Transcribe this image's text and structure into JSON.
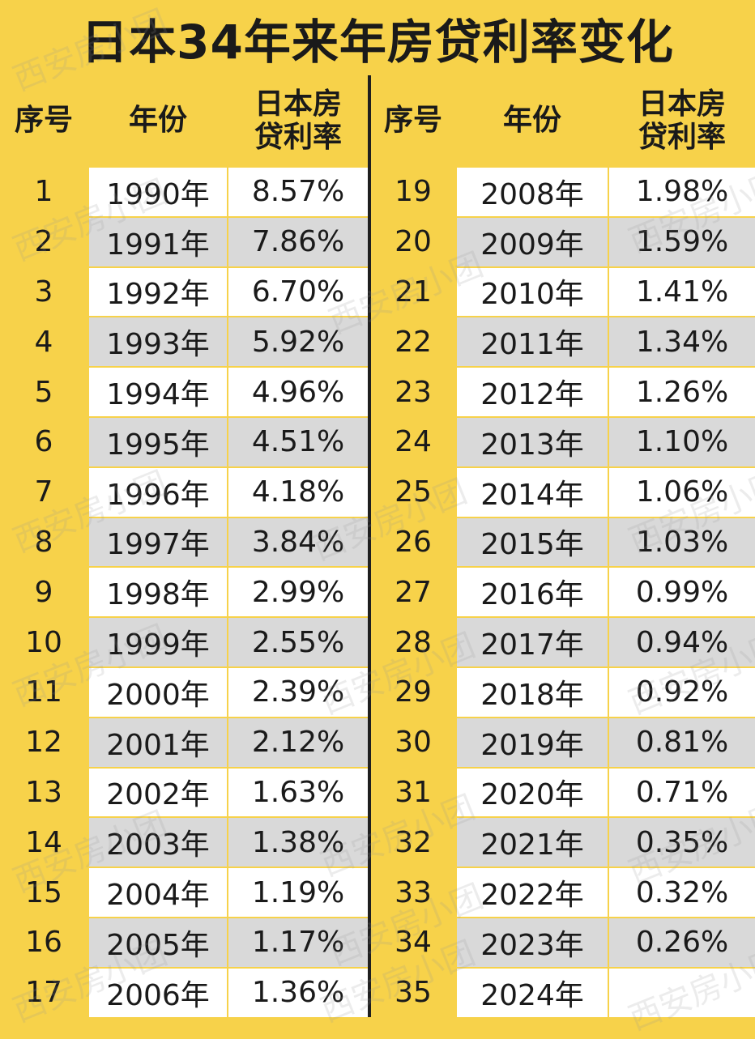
{
  "title": "日本34年来年房贷利率变化",
  "headers": {
    "seq": "序号",
    "year": "年份",
    "rate_line1": "日本房",
    "rate_line2": "贷利率"
  },
  "left_rows": [
    {
      "no": "1",
      "year": "1990年",
      "rate": "8.57%"
    },
    {
      "no": "2",
      "year": "1991年",
      "rate": "7.86%"
    },
    {
      "no": "3",
      "year": "1992年",
      "rate": "6.70%"
    },
    {
      "no": "4",
      "year": "1993年",
      "rate": "5.92%"
    },
    {
      "no": "5",
      "year": "1994年",
      "rate": "4.96%"
    },
    {
      "no": "6",
      "year": "1995年",
      "rate": "4.51%"
    },
    {
      "no": "7",
      "year": "1996年",
      "rate": "4.18%"
    },
    {
      "no": "8",
      "year": "1997年",
      "rate": "3.84%"
    },
    {
      "no": "9",
      "year": "1998年",
      "rate": "2.99%"
    },
    {
      "no": "10",
      "year": "1999年",
      "rate": "2.55%"
    },
    {
      "no": "11",
      "year": "2000年",
      "rate": "2.39%"
    },
    {
      "no": "12",
      "year": "2001年",
      "rate": "2.12%"
    },
    {
      "no": "13",
      "year": "2002年",
      "rate": "1.63%"
    },
    {
      "no": "14",
      "year": "2003年",
      "rate": "1.38%"
    },
    {
      "no": "15",
      "year": "2004年",
      "rate": "1.19%"
    },
    {
      "no": "16",
      "year": "2005年",
      "rate": "1.17%"
    },
    {
      "no": "17",
      "year": "2006年",
      "rate": "1.36%"
    }
  ],
  "right_rows": [
    {
      "no": "19",
      "year": "2008年",
      "rate": "1.98%"
    },
    {
      "no": "20",
      "year": "2009年",
      "rate": "1.59%"
    },
    {
      "no": "21",
      "year": "2010年",
      "rate": "1.41%"
    },
    {
      "no": "22",
      "year": "2011年",
      "rate": "1.34%"
    },
    {
      "no": "23",
      "year": "2012年",
      "rate": "1.26%"
    },
    {
      "no": "24",
      "year": "2013年",
      "rate": "1.10%"
    },
    {
      "no": "25",
      "year": "2014年",
      "rate": "1.06%"
    },
    {
      "no": "26",
      "year": "2015年",
      "rate": "1.03%"
    },
    {
      "no": "27",
      "year": "2016年",
      "rate": "0.99%"
    },
    {
      "no": "28",
      "year": "2017年",
      "rate": "0.94%"
    },
    {
      "no": "29",
      "year": "2018年",
      "rate": "0.92%"
    },
    {
      "no": "30",
      "year": "2019年",
      "rate": "0.81%"
    },
    {
      "no": "31",
      "year": "2020年",
      "rate": "0.71%"
    },
    {
      "no": "32",
      "year": "2021年",
      "rate": "0.35%"
    },
    {
      "no": "33",
      "year": "2022年",
      "rate": "0.32%"
    },
    {
      "no": "34",
      "year": "2023年",
      "rate": "0.26%"
    },
    {
      "no": "35",
      "year": "2024年",
      "rate": ""
    }
  ],
  "watermark": "西安房小团",
  "colors": {
    "yellow": "#f7d24a",
    "white": "#ffffff",
    "gray": "#d9d9d9",
    "divider": "#1f1f1f"
  }
}
